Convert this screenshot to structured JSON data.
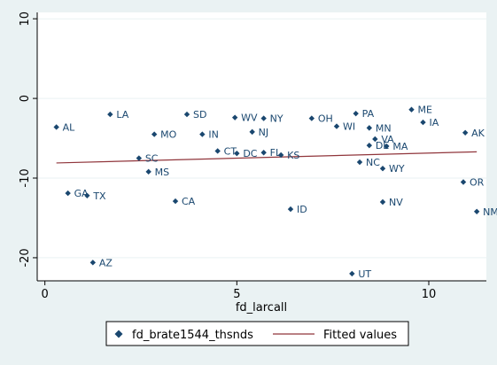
{
  "chart_data": {
    "type": "scatter",
    "title": "",
    "xlabel": "fd_larcall",
    "ylabel": "",
    "xlim": [
      -0.2,
      11.5
    ],
    "ylim": [
      -22.9,
      10.8
    ],
    "x_ticks": [
      0,
      5,
      10
    ],
    "y_ticks": [
      10,
      0,
      -10,
      -20
    ],
    "grid": "horizontal",
    "legend_position": "bottom",
    "colors": {
      "plot_bg": "#ffffff",
      "outer_bg": "#eaf2f3",
      "marker": "#1a476f",
      "fit_line": "#90353b",
      "label": "#1a476f",
      "grid": "#eaf2f3",
      "axis": "#000000"
    },
    "series": [
      {
        "name": "fd_brate1544_thsnds",
        "kind": "scatter",
        "points": [
          {
            "label": "AL",
            "x": 0.3,
            "y": -3.6
          },
          {
            "label": "LA",
            "x": 1.7,
            "y": -2.0
          },
          {
            "label": "SD",
            "x": 3.7,
            "y": -2.0
          },
          {
            "label": "WV",
            "x": 4.95,
            "y": -2.4
          },
          {
            "label": "NY",
            "x": 5.7,
            "y": -2.5
          },
          {
            "label": "OH",
            "x": 6.95,
            "y": -2.5
          },
          {
            "label": "PA",
            "x": 8.1,
            "y": -1.9
          },
          {
            "label": "ME",
            "x": 9.55,
            "y": -1.4
          },
          {
            "label": "IA",
            "x": 9.85,
            "y": -3.0
          },
          {
            "label": "AK",
            "x": 10.95,
            "y": -4.3
          },
          {
            "label": "MO",
            "x": 2.85,
            "y": -4.5
          },
          {
            "label": "IN",
            "x": 4.1,
            "y": -4.5
          },
          {
            "label": "NJ",
            "x": 5.4,
            "y": -4.2
          },
          {
            "label": "WI",
            "x": 7.6,
            "y": -3.5
          },
          {
            "label": "MN",
            "x": 8.45,
            "y": -3.7
          },
          {
            "label": "VA",
            "x": 8.6,
            "y": -5.1
          },
          {
            "label": "DE",
            "x": 8.45,
            "y": -5.9
          },
          {
            "label": "MA",
            "x": 8.9,
            "y": -6.0
          },
          {
            "label": "SC",
            "x": 2.45,
            "y": -7.5
          },
          {
            "label": "CT",
            "x": 4.5,
            "y": -6.6
          },
          {
            "label": "DC",
            "x": 5.0,
            "y": -6.9
          },
          {
            "label": "FL",
            "x": 5.7,
            "y": -6.8
          },
          {
            "label": "KS",
            "x": 6.15,
            "y": -7.1
          },
          {
            "label": "NC",
            "x": 8.2,
            "y": -8.0
          },
          {
            "label": "WY",
            "x": 8.8,
            "y": -8.8
          },
          {
            "label": "MS",
            "x": 2.7,
            "y": -9.2
          },
          {
            "label": "OR",
            "x": 10.9,
            "y": -10.5
          },
          {
            "label": "GA",
            "x": 0.6,
            "y": -11.9
          },
          {
            "label": "TX",
            "x": 1.1,
            "y": -12.2
          },
          {
            "label": "CA",
            "x": 3.4,
            "y": -12.9
          },
          {
            "label": "NV",
            "x": 8.8,
            "y": -13.0
          },
          {
            "label": "ID",
            "x": 6.4,
            "y": -13.9
          },
          {
            "label": "NM",
            "x": 11.25,
            "y": -14.2
          },
          {
            "label": "AZ",
            "x": 1.25,
            "y": -20.6
          },
          {
            "label": "UT",
            "x": 8.0,
            "y": -22.0
          }
        ]
      },
      {
        "name": "Fitted values",
        "kind": "line",
        "x": [
          0.3,
          11.25
        ],
        "y": [
          -8.1,
          -6.7
        ]
      }
    ]
  }
}
